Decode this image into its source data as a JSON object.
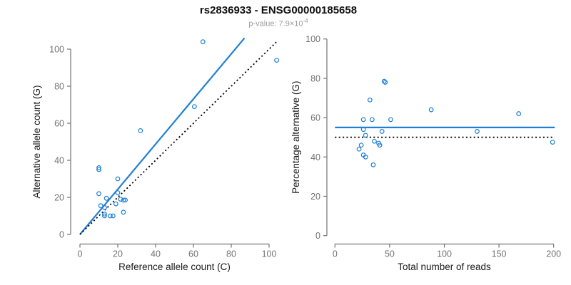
{
  "header": {
    "title": "rs2836933 - ENSG00000185658",
    "subtitle_main": "p-value: 7.9×10",
    "subtitle_exponent": "-4"
  },
  "colors": {
    "accent_blue": "#1e7fd6",
    "dotted_line_black": "#000000",
    "axis_gray": "#737373",
    "tick_label_gray": "#737373",
    "title_black": "#111111",
    "subtitle_gray": "#9a9a9a"
  },
  "chart_data": {
    "figure_title": "rs2836933 - ENSG00000185658",
    "figure_subtitle": "p-value: 7.9×10^-4",
    "panels": [
      {
        "type": "scatter",
        "title": "",
        "xlabel": "Reference allele count (C)",
        "ylabel": "Alternative allele count (G)",
        "xlim": [
          0,
          105
        ],
        "ylim": [
          0,
          106
        ],
        "xticks": [
          0,
          20,
          40,
          60,
          80,
          100
        ],
        "yticks": [
          0,
          20,
          40,
          60,
          80,
          100
        ],
        "grid": false,
        "legend": false,
        "marker": "open-circle",
        "points": [
          [
            10,
            36
          ],
          [
            10,
            35
          ],
          [
            20,
            30
          ],
          [
            10,
            22
          ],
          [
            20,
            22.5
          ],
          [
            14,
            19.5
          ],
          [
            21.5,
            19
          ],
          [
            23,
            18.5
          ],
          [
            24,
            18.5
          ],
          [
            11,
            15.5
          ],
          [
            13,
            14.5
          ],
          [
            19,
            16.5
          ],
          [
            13,
            11
          ],
          [
            13,
            10
          ],
          [
            16,
            10
          ],
          [
            17.5,
            10
          ],
          [
            23,
            12
          ],
          [
            32,
            56
          ],
          [
            60.5,
            69
          ],
          [
            65,
            104
          ],
          [
            104,
            94
          ]
        ],
        "lines": [
          {
            "name": "regression",
            "style": "solid",
            "color_key": "accent_blue",
            "x1": 0,
            "y1": 0,
            "x2": 87,
            "y2": 106
          },
          {
            "name": "identity",
            "style": "dotted",
            "color_key": "dotted_line_black",
            "x1": 0,
            "y1": 0,
            "x2": 104,
            "y2": 104
          }
        ]
      },
      {
        "type": "scatter",
        "title": "",
        "xlabel": "Total number of reads",
        "ylabel": "Percentage alternative (G)",
        "xlim": [
          0,
          201
        ],
        "ylim": [
          0,
          100
        ],
        "xticks": [
          0,
          50,
          100,
          150,
          200
        ],
        "yticks": [
          0,
          20,
          40,
          60,
          80,
          100
        ],
        "grid": false,
        "legend": false,
        "marker": "open-circle",
        "points": [
          [
            45,
            78.5
          ],
          [
            46,
            78
          ],
          [
            32,
            69
          ],
          [
            26,
            59
          ],
          [
            34,
            59
          ],
          [
            51,
            59
          ],
          [
            88,
            64
          ],
          [
            168,
            62
          ],
          [
            26,
            54
          ],
          [
            43,
            53
          ],
          [
            130,
            53
          ],
          [
            28,
            51
          ],
          [
            36,
            48
          ],
          [
            40,
            47
          ],
          [
            41,
            46
          ],
          [
            24,
            46
          ],
          [
            22,
            44
          ],
          [
            26,
            41
          ],
          [
            28,
            40
          ],
          [
            35,
            36
          ],
          [
            199,
            47.5
          ]
        ],
        "lines": [
          {
            "name": "mean-percentage",
            "style": "solid",
            "color_key": "accent_blue",
            "x1": 0,
            "y1": 55,
            "x2": 201,
            "y2": 55
          },
          {
            "name": "expected-50pct",
            "style": "dotted",
            "color_key": "dotted_line_black",
            "x1": 0,
            "y1": 50,
            "x2": 201,
            "y2": 50
          }
        ]
      }
    ]
  }
}
